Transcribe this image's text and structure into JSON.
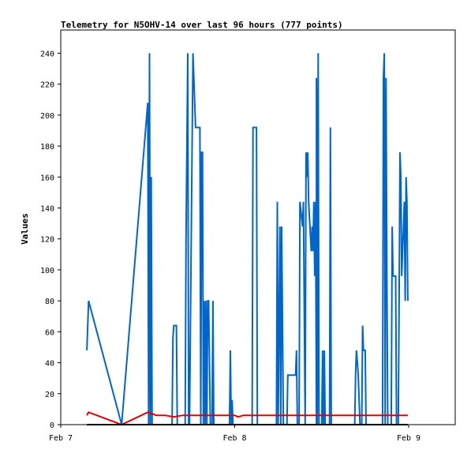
{
  "chart_data": {
    "type": "line",
    "title": "Telemetry for N5OHV-14 over last 96 hours (777 points)",
    "xlabel": "",
    "ylabel": "Values",
    "ylim": [
      0,
      255
    ],
    "yticks": [
      0,
      20,
      40,
      60,
      80,
      100,
      120,
      140,
      160,
      180,
      200,
      220,
      240
    ],
    "xlim": [
      0,
      2.29
    ],
    "xtick_labels": [
      {
        "x": 0,
        "label": "Feb 7"
      },
      {
        "x": 1,
        "label": "Feb 8"
      },
      {
        "x": 2,
        "label": "Feb 9"
      }
    ],
    "grid": false,
    "colors": {
      "blue": "#0066cc",
      "red": "#e00000",
      "black": "#000000"
    },
    "series": [
      {
        "color": "#0066cc",
        "points": [
          [
            0.15,
            48
          ],
          [
            0.16,
            80
          ],
          [
            0.35,
            0
          ],
          [
            0.5,
            208
          ],
          [
            0.505,
            0
          ],
          [
            0.51,
            240
          ],
          [
            0.515,
            0
          ],
          [
            0.52,
            160
          ],
          [
            0.525,
            0
          ],
          [
            0.64,
            0
          ],
          [
            0.645,
            56
          ],
          [
            0.65,
            64
          ],
          [
            0.665,
            64
          ],
          [
            0.67,
            0
          ],
          [
            0.715,
            0
          ],
          [
            0.72,
            120
          ],
          [
            0.73,
            240
          ],
          [
            0.735,
            0
          ],
          [
            0.74,
            0
          ],
          [
            0.76,
            240
          ],
          [
            0.765,
            224
          ],
          [
            0.775,
            192
          ],
          [
            0.8,
            192
          ],
          [
            0.805,
            0
          ],
          [
            0.81,
            176
          ],
          [
            0.815,
            176
          ],
          [
            0.82,
            0
          ],
          [
            0.825,
            80
          ],
          [
            0.83,
            0
          ],
          [
            0.835,
            80
          ],
          [
            0.84,
            0
          ],
          [
            0.845,
            80
          ],
          [
            0.85,
            80
          ],
          [
            0.86,
            0
          ],
          [
            0.87,
            0
          ],
          [
            0.875,
            80
          ],
          [
            0.88,
            0
          ],
          [
            0.97,
            0
          ],
          [
            0.975,
            48
          ],
          [
            0.98,
            0
          ],
          [
            0.985,
            16
          ],
          [
            0.99,
            0
          ],
          [
            1.1,
            0
          ],
          [
            1.105,
            192
          ],
          [
            1.125,
            192
          ],
          [
            1.13,
            0
          ],
          [
            1.24,
            0
          ],
          [
            1.245,
            144
          ],
          [
            1.25,
            0
          ],
          [
            1.255,
            64
          ],
          [
            1.26,
            128
          ],
          [
            1.265,
            0
          ],
          [
            1.27,
            128
          ],
          [
            1.275,
            64
          ],
          [
            1.28,
            0
          ],
          [
            1.3,
            0
          ],
          [
            1.305,
            32
          ],
          [
            1.35,
            32
          ],
          [
            1.355,
            48
          ],
          [
            1.36,
            0
          ],
          [
            1.37,
            0
          ],
          [
            1.375,
            144
          ],
          [
            1.39,
            128
          ],
          [
            1.395,
            144
          ],
          [
            1.405,
            0
          ],
          [
            1.41,
            176
          ],
          [
            1.415,
            160
          ],
          [
            1.42,
            176
          ],
          [
            1.425,
            144
          ],
          [
            1.44,
            112
          ],
          [
            1.445,
            128
          ],
          [
            1.45,
            112
          ],
          [
            1.455,
            144
          ],
          [
            1.46,
            96
          ],
          [
            1.465,
            144
          ],
          [
            1.47,
            0
          ],
          [
            1.47,
            224
          ],
          [
            1.475,
            0
          ],
          [
            1.48,
            240
          ],
          [
            1.485,
            0
          ],
          [
            1.5,
            0
          ],
          [
            1.505,
            48
          ],
          [
            1.51,
            0
          ],
          [
            1.515,
            48
          ],
          [
            1.52,
            0
          ],
          [
            1.545,
            0
          ],
          [
            1.55,
            192
          ],
          [
            1.555,
            0
          ],
          [
            1.69,
            0
          ],
          [
            1.695,
            32
          ],
          [
            1.7,
            48
          ],
          [
            1.705,
            40
          ],
          [
            1.71,
            32
          ],
          [
            1.72,
            0
          ],
          [
            1.73,
            0
          ],
          [
            1.735,
            64
          ],
          [
            1.74,
            48
          ],
          [
            1.75,
            48
          ],
          [
            1.755,
            0
          ],
          [
            1.85,
            0
          ],
          [
            1.855,
            224
          ],
          [
            1.86,
            240
          ],
          [
            1.865,
            0
          ],
          [
            1.87,
            224
          ],
          [
            1.875,
            96
          ],
          [
            1.88,
            0
          ],
          [
            1.9,
            0
          ],
          [
            1.905,
            128
          ],
          [
            1.91,
            96
          ],
          [
            1.925,
            96
          ],
          [
            1.93,
            0
          ],
          [
            1.94,
            0
          ],
          [
            1.945,
            80
          ],
          [
            1.95,
            176
          ],
          [
            1.955,
            160
          ],
          [
            1.96,
            96
          ],
          [
            1.965,
            112
          ],
          [
            1.97,
            128
          ],
          [
            1.975,
            144
          ],
          [
            1.98,
            80
          ],
          [
            1.985,
            160
          ],
          [
            1.99,
            144
          ],
          [
            1.995,
            80
          ]
        ]
      },
      {
        "color": "#e00000",
        "points": [
          [
            0.15,
            6
          ],
          [
            0.16,
            8
          ],
          [
            0.35,
            0
          ],
          [
            0.5,
            8
          ],
          [
            0.55,
            6
          ],
          [
            0.6,
            6
          ],
          [
            0.65,
            5
          ],
          [
            0.7,
            6
          ],
          [
            0.8,
            6
          ],
          [
            0.9,
            6
          ],
          [
            1.0,
            6
          ],
          [
            1.02,
            5
          ],
          [
            1.05,
            6
          ],
          [
            1.2,
            6
          ],
          [
            1.3,
            6
          ],
          [
            1.4,
            6
          ],
          [
            1.5,
            6
          ],
          [
            1.6,
            6
          ],
          [
            1.7,
            6
          ],
          [
            1.8,
            6
          ],
          [
            1.9,
            6
          ],
          [
            1.995,
            6
          ]
        ]
      },
      {
        "color": "#000000",
        "points": [
          [
            0.15,
            0
          ],
          [
            1.995,
            0
          ]
        ]
      }
    ]
  }
}
